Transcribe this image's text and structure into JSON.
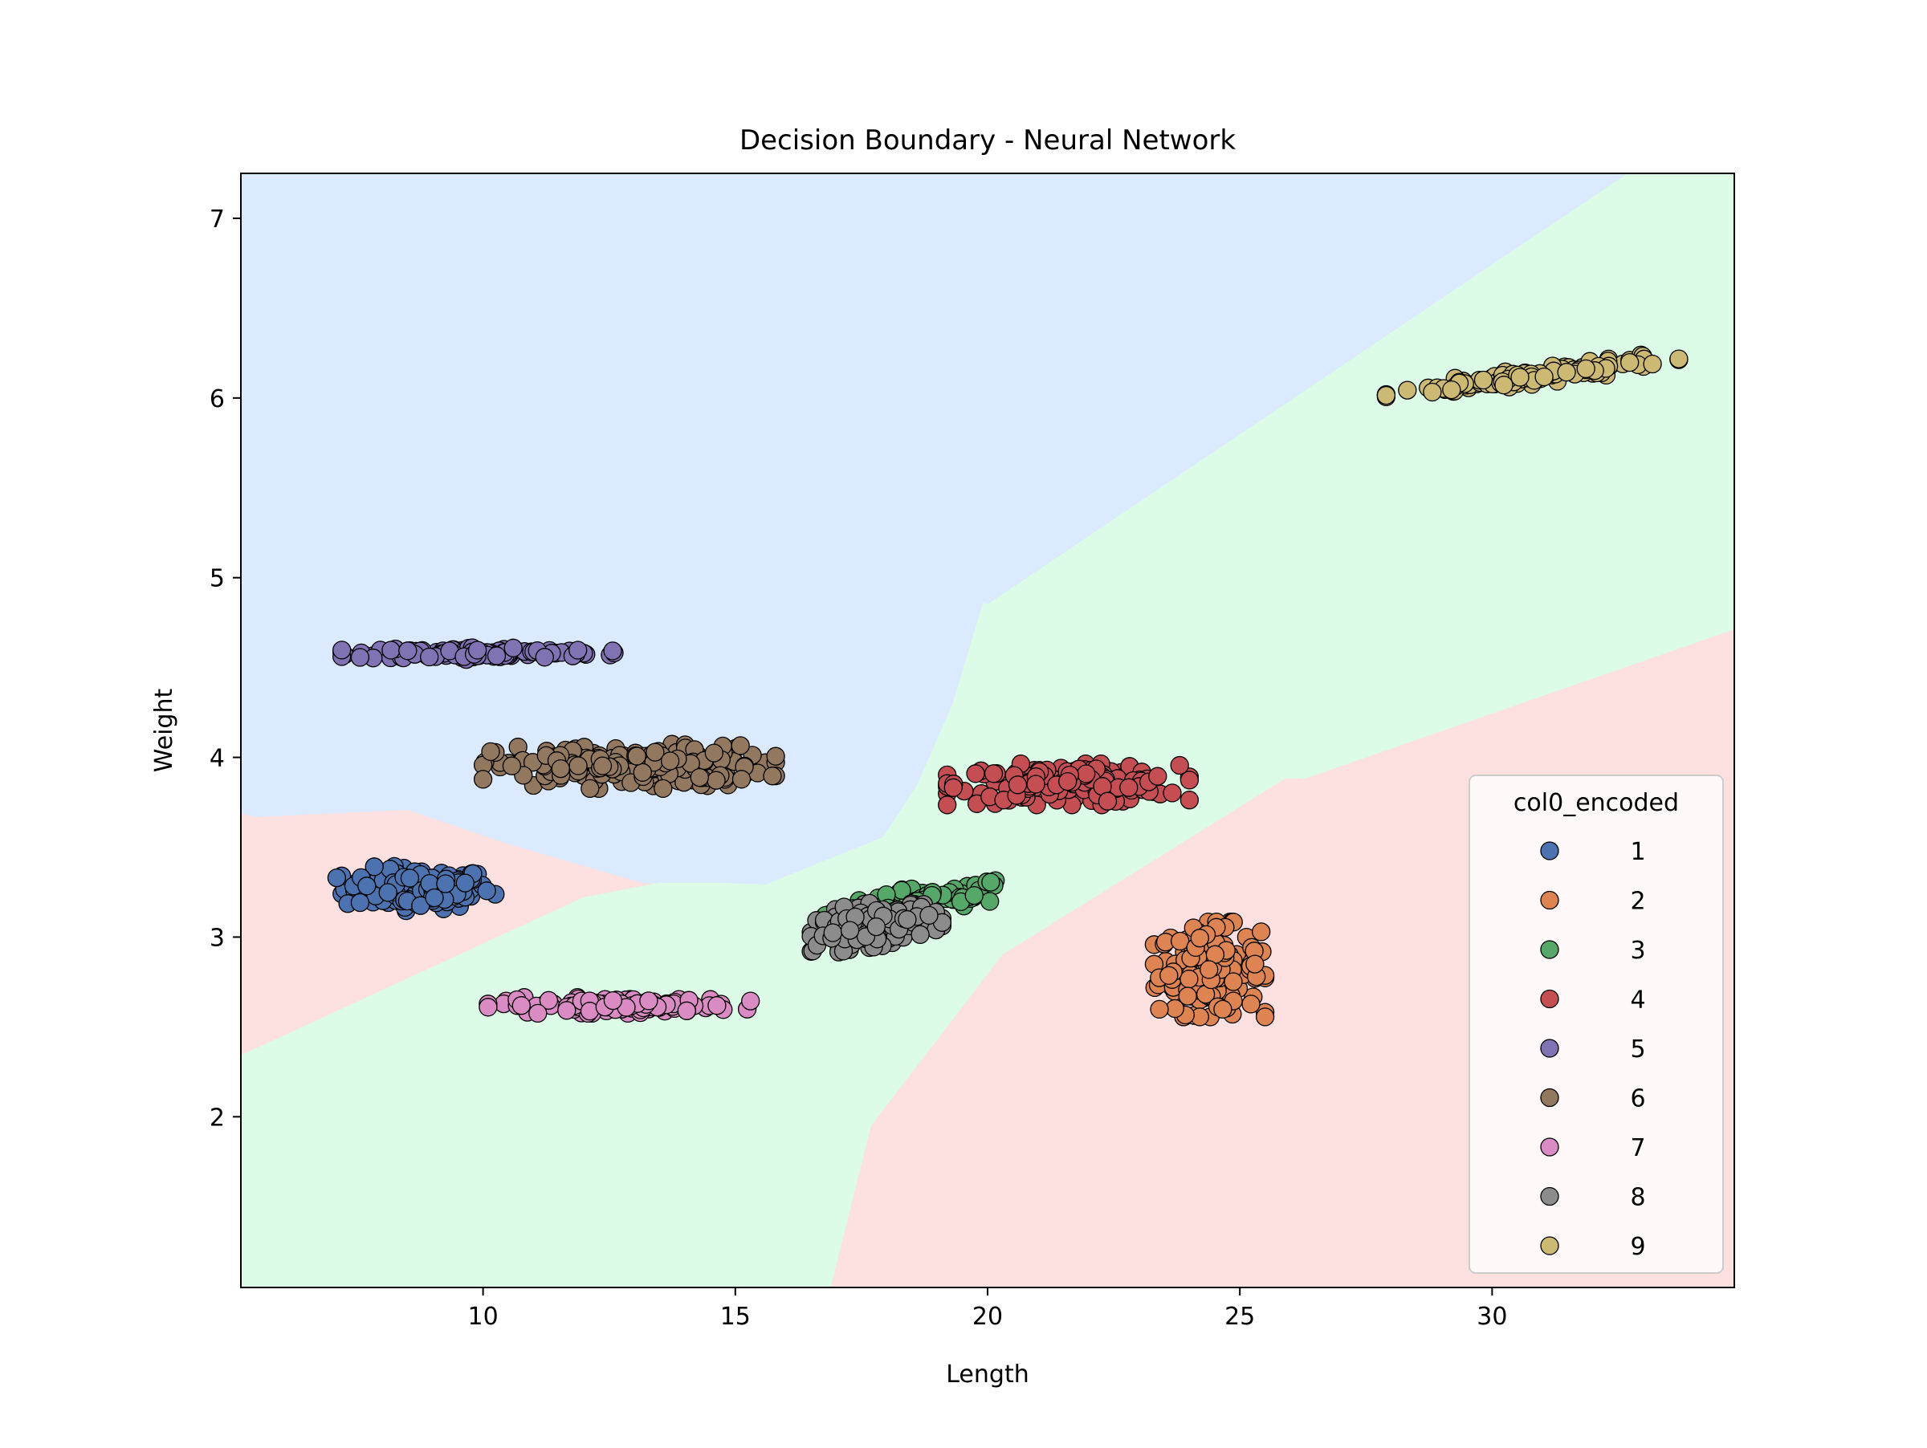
{
  "chart_data": {
    "type": "scatter",
    "title": "Decision Boundary - Neural Network",
    "xlabel": "Length",
    "ylabel": "Weight",
    "xlim": [
      5.2,
      34.8
    ],
    "ylim": [
      1.05,
      7.25
    ],
    "xticks": [
      10,
      15,
      20,
      25,
      30
    ],
    "yticks": [
      2,
      3,
      4,
      5,
      6,
      7
    ],
    "grid": false,
    "legend": {
      "title": "col0_encoded",
      "placement": "lower-right"
    },
    "region_colors": {
      "blue": "#dbeafe",
      "green": "#dcfce7",
      "red": "#fde0e0"
    },
    "regions": [
      {
        "class": "blue",
        "polygon": [
          [
            5.2,
            7.25
          ],
          [
            32.7,
            7.25
          ],
          [
            20.0,
            4.85
          ],
          [
            19.9,
            4.86
          ],
          [
            16.4,
            4.5
          ],
          [
            10.0,
            4.14
          ],
          [
            5.2,
            3.93
          ]
        ]
      },
      {
        "class": "green",
        "polygon": [
          [
            32.7,
            7.25
          ],
          [
            34.8,
            7.25
          ],
          [
            34.8,
            4.71
          ],
          [
            26.3,
            3.88
          ],
          [
            25.9,
            3.88
          ],
          [
            20.3,
            2.9
          ],
          [
            19.4,
            3.29
          ],
          [
            17.9,
            3.55
          ],
          [
            18.6,
            3.85
          ],
          [
            19.3,
            4.3
          ],
          [
            19.9,
            4.86
          ],
          [
            20.0,
            4.85
          ]
        ]
      },
      {
        "class": "red",
        "polygon": [
          [
            5.2,
            3.93
          ],
          [
            5.2,
            3.69
          ],
          [
            5.5,
            3.67
          ],
          [
            8.5,
            3.71
          ],
          [
            10.5,
            3.52
          ],
          [
            13.2,
            3.3
          ],
          [
            13.5,
            3.3
          ],
          [
            12.0,
            3.22
          ],
          [
            5.2,
            2.34
          ]
        ]
      },
      {
        "class": "blue",
        "polygon": [
          [
            5.2,
            3.93
          ],
          [
            10.0,
            4.14
          ],
          [
            16.4,
            4.5
          ],
          [
            19.9,
            4.86
          ],
          [
            19.3,
            4.3
          ],
          [
            18.6,
            3.85
          ],
          [
            17.9,
            3.55
          ],
          [
            15.6,
            3.29
          ],
          [
            14.7,
            3.3
          ],
          [
            13.5,
            3.3
          ],
          [
            13.2,
            3.3
          ],
          [
            10.5,
            3.52
          ],
          [
            8.5,
            3.71
          ],
          [
            5.5,
            3.67
          ],
          [
            5.2,
            3.69
          ]
        ]
      },
      {
        "class": "green",
        "polygon": [
          [
            5.2,
            2.34
          ],
          [
            12.0,
            3.22
          ],
          [
            13.5,
            3.3
          ],
          [
            14.7,
            3.3
          ],
          [
            15.6,
            3.29
          ],
          [
            17.9,
            3.55
          ],
          [
            19.4,
            3.29
          ],
          [
            20.3,
            2.9
          ],
          [
            17.7,
            1.95
          ],
          [
            16.9,
            1.05
          ],
          [
            5.2,
            1.05
          ]
        ]
      },
      {
        "class": "red",
        "polygon": [
          [
            34.8,
            4.71
          ],
          [
            34.8,
            1.05
          ],
          [
            16.9,
            1.05
          ],
          [
            17.7,
            1.95
          ],
          [
            20.3,
            2.9
          ],
          [
            25.9,
            3.88
          ],
          [
            26.3,
            3.88
          ]
        ]
      }
    ],
    "series": [
      {
        "name": "1",
        "color": "#4c72b0",
        "center": [
          8.7,
          3.27
        ],
        "spread": [
          1.6,
          0.14
        ],
        "count": 140
      },
      {
        "name": "2",
        "color": "#dd8452",
        "center": [
          24.4,
          2.82
        ],
        "spread": [
          1.1,
          0.3
        ],
        "count": 190
      },
      {
        "name": "3",
        "color": "#55a868",
        "center": [
          18.7,
          3.2
        ],
        "spread": [
          2.0,
          0.09
        ],
        "count": 100
      },
      {
        "name": "4",
        "color": "#c44e52",
        "center": [
          21.6,
          3.85
        ],
        "spread": [
          2.4,
          0.13
        ],
        "count": 180
      },
      {
        "name": "5",
        "color": "#8172b3",
        "center": [
          9.9,
          4.58
        ],
        "spread": [
          2.7,
          0.04
        ],
        "count": 110
      },
      {
        "name": "6",
        "color": "#937860",
        "center": [
          12.9,
          3.95
        ],
        "spread": [
          2.9,
          0.14
        ],
        "count": 220
      },
      {
        "name": "7",
        "color": "#da8bc3",
        "center": [
          12.7,
          2.62
        ],
        "spread": [
          2.6,
          0.05
        ],
        "count": 120
      },
      {
        "name": "8",
        "color": "#8c8c8c",
        "center": [
          17.8,
          3.07
        ],
        "spread": [
          1.3,
          0.14
        ],
        "count": 160
      },
      {
        "name": "9",
        "color": "#ccb974",
        "center": [
          30.8,
          6.12
        ],
        "spread": [
          2.9,
          0.05
        ],
        "count": 140
      }
    ]
  }
}
